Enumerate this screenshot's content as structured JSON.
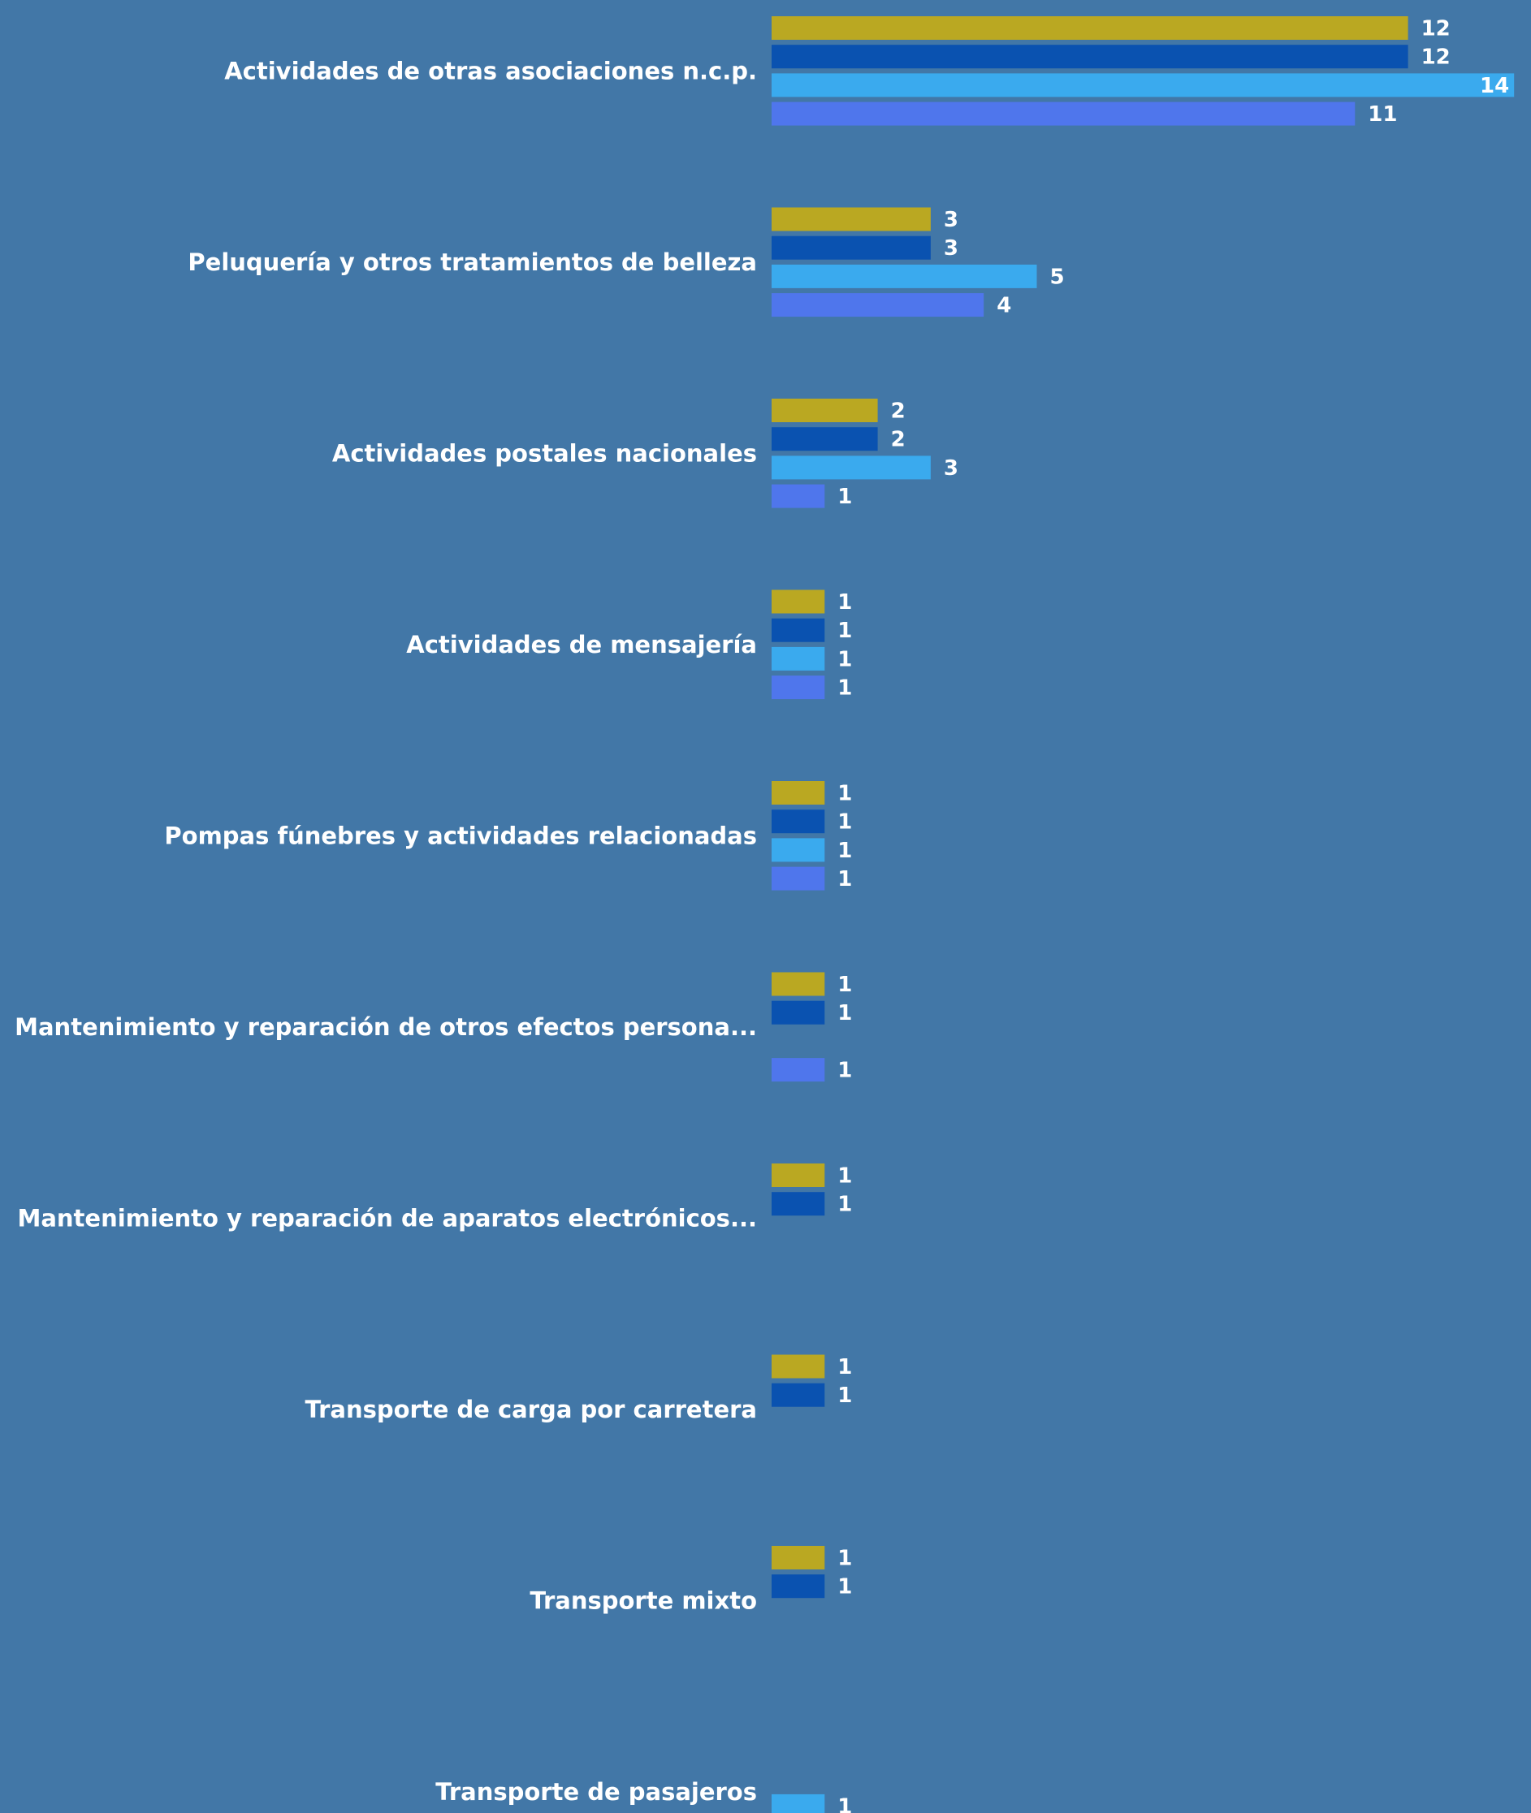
{
  "chart_data": {
    "type": "bar",
    "orientation": "horizontal",
    "categories": [
      "Actividades de otras asociaciones n.c.p.",
      "Peluquería y otros tratamientos de belleza",
      "Actividades postales nacionales",
      "Actividades de mensajería",
      "Pompas fúnebres y actividades relacionadas",
      "Mantenimiento y reparación de otros efectos persona...",
      "Mantenimiento y reparación de aparatos electrónicos...",
      "Transporte de carga por carretera",
      "Transporte mixto",
      "Transporte de pasajeros"
    ],
    "series": [
      {
        "color": "#baa822",
        "values": [
          12,
          3,
          2,
          1,
          1,
          1,
          1,
          1,
          1,
          null
        ]
      },
      {
        "color": "#0a52b0",
        "values": [
          12,
          3,
          2,
          1,
          1,
          1,
          1,
          1,
          1,
          null
        ]
      },
      {
        "color": "#3aaaee",
        "values": [
          14,
          5,
          3,
          1,
          1,
          null,
          null,
          null,
          null,
          1
        ]
      },
      {
        "color": "#4f76ec",
        "values": [
          11,
          4,
          1,
          1,
          1,
          1,
          null,
          null,
          null,
          null
        ]
      }
    ],
    "xlim": [
      0,
      14
    ],
    "grid": false,
    "legend": "none",
    "data_labels": true,
    "background": "#4277a7",
    "text_color": "#ffffff"
  }
}
